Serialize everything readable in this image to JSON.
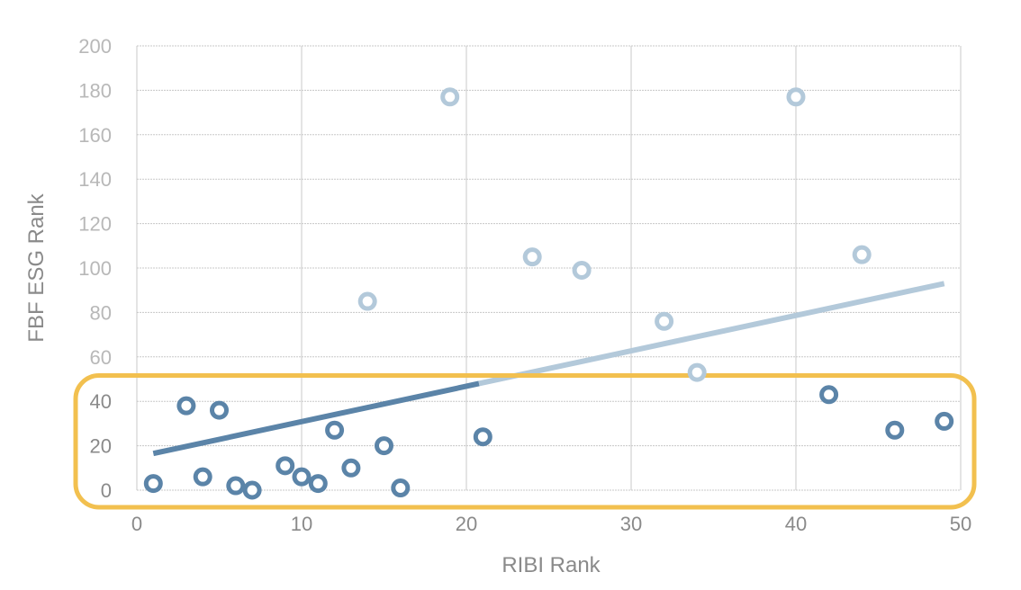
{
  "chart_data": {
    "type": "scatter",
    "title": "",
    "xlabel": "RIBI Rank",
    "ylabel": "FBF ESG Rank",
    "xlim": [
      0,
      50
    ],
    "ylim": [
      0,
      200
    ],
    "x_ticks": [
      "0",
      "10",
      "20",
      "30",
      "40",
      "50"
    ],
    "y_ticks": [
      "0",
      "20",
      "40",
      "60",
      "80",
      "100",
      "120",
      "140",
      "160",
      "180",
      "200"
    ],
    "grid": true,
    "highlight_range": [
      0,
      50
    ],
    "highlight_color": "#f2c04f",
    "series": [
      {
        "color": "#5b84a8",
        "points": [
          {
            "x": 1,
            "y": 3
          },
          {
            "x": 3,
            "y": 38
          },
          {
            "x": 4,
            "y": 6
          },
          {
            "x": 5,
            "y": 36
          },
          {
            "x": 6,
            "y": 2
          },
          {
            "x": 7,
            "y": 0
          },
          {
            "x": 9,
            "y": 11
          },
          {
            "x": 10,
            "y": 6
          },
          {
            "x": 11,
            "y": 3
          },
          {
            "x": 12,
            "y": 27
          },
          {
            "x": 13,
            "y": 10
          },
          {
            "x": 15,
            "y": 20
          },
          {
            "x": 16,
            "y": 1
          },
          {
            "x": 21,
            "y": 24
          },
          {
            "x": 42,
            "y": 43
          },
          {
            "x": 46,
            "y": 27
          },
          {
            "x": 49,
            "y": 31
          }
        ]
      },
      {
        "color": "#b3c9da",
        "points": [
          {
            "x": 14,
            "y": 85
          },
          {
            "x": 19,
            "y": 177
          },
          {
            "x": 24,
            "y": 105
          },
          {
            "x": 27,
            "y": 99
          },
          {
            "x": 32,
            "y": 76
          },
          {
            "x": 34,
            "y": 53
          },
          {
            "x": 40,
            "y": 177
          },
          {
            "x": 44,
            "y": 106
          }
        ]
      }
    ],
    "trendline": {
      "x": [
        1,
        49
      ],
      "y": [
        16.5,
        93
      ],
      "color_below": "#5b84a8",
      "color_above": "#b3c9da"
    },
    "tick_color_gray": "#b8b8b8",
    "tick_color_dark": "#8a8a8a"
  }
}
